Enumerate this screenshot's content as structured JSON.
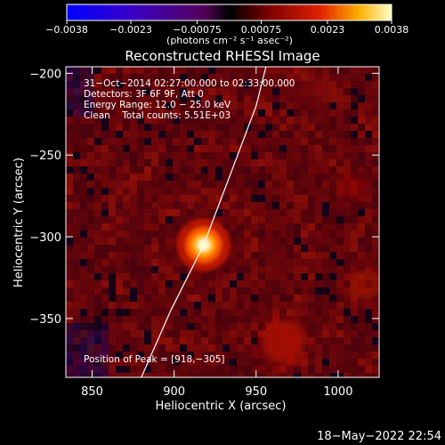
{
  "chart_data": {
    "type": "heatmap",
    "title": "Reconstructed RHESSI Image",
    "xlabel": "Heliocentric X (arcsec)",
    "ylabel": "Heliocentric Y (arcsec)",
    "xlim": [
      834,
      1025
    ],
    "ylim": [
      -386,
      -196
    ],
    "x_ticks": [
      850,
      900,
      950,
      1000
    ],
    "y_ticks": [
      -200,
      -250,
      -300,
      -350
    ],
    "x_tick_labels": [
      "850",
      "900",
      "950",
      "1000"
    ],
    "y_tick_labels": [
      "−200",
      "−250",
      "−300",
      "−350"
    ],
    "colorbar": {
      "range": [
        -0.0038,
        0.0038
      ],
      "ticks": [
        -0.0038,
        -0.0023,
        -0.00075,
        0.00075,
        0.0023,
        0.0038
      ],
      "tick_labels": [
        "−0.0038",
        "−0.0023",
        "−0.00075",
        "0.00075",
        "0.0023",
        "0.0038"
      ],
      "unit_label": "(photons cm⁻² s⁻¹ asec⁻²)"
    },
    "annotations": [
      "31−Oct−2014 02:27:00.000 to 02:33:00.000",
      "Detectors: 3F 6F 9F, Att 0",
      "Energy Range: 12.0 − 25.0 keV",
      "Clean    Total counts: 5.51E+03"
    ],
    "peak_label": "Position of Peak = [918,−305]",
    "peak": [
      918,
      -305
    ],
    "limb_curve": [
      [
        880,
        -386
      ],
      [
        898,
        -345
      ],
      [
        918,
        -305
      ],
      [
        935,
        -260
      ],
      [
        950,
        -220
      ],
      [
        956,
        -196
      ]
    ]
  },
  "footer": {
    "timestamp": "18−May−2022 22:54"
  }
}
